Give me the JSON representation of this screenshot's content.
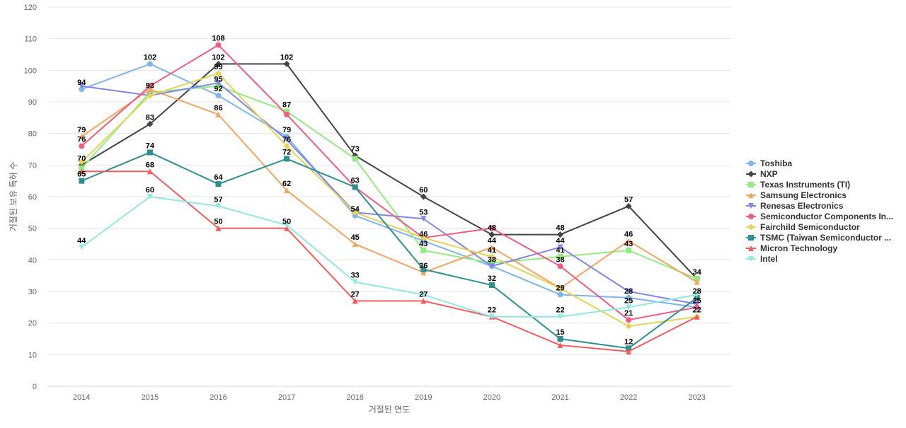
{
  "chart_data": {
    "type": "line",
    "title": "",
    "xlabel": "거절된 연도",
    "ylabel": "거절된 보유 특허 수",
    "ylim": [
      0,
      120
    ],
    "yticks": [
      0,
      10,
      20,
      30,
      40,
      50,
      60,
      70,
      80,
      90,
      100,
      110,
      120
    ],
    "grid": true,
    "legend_position": "right",
    "categories": [
      "2014",
      "2015",
      "2016",
      "2017",
      "2018",
      "2019",
      "2020",
      "2021",
      "2022",
      "2023"
    ],
    "series": [
      {
        "name": "Toshiba",
        "color": "#7cb5ec",
        "marker": "circle",
        "values": [
          94,
          102,
          92,
          79,
          54,
          46,
          38,
          29,
          28,
          25
        ]
      },
      {
        "name": "NXP",
        "color": "#434348",
        "marker": "diamond",
        "values": [
          70,
          83,
          102,
          102,
          73,
          60,
          48,
          48,
          57,
          34
        ]
      },
      {
        "name": "Texas Instruments (TI)",
        "color": "#90ed7d",
        "marker": "square",
        "values": [
          69,
          93,
          95,
          87,
          72,
          43,
          39,
          41,
          43,
          34
        ]
      },
      {
        "name": "Samsung Electronics",
        "color": "#f7a35c",
        "marker": "triangle",
        "values": [
          79,
          94,
          86,
          62,
          45,
          36,
          44,
          31,
          46,
          33
        ]
      },
      {
        "name": "Renesas Electronics",
        "color": "#8085e9",
        "marker": "triangle-down",
        "values": [
          95,
          92,
          96,
          78,
          55,
          53,
          38,
          44,
          30,
          26
        ]
      },
      {
        "name": "Semiconductor Components In...",
        "color": "#f15c80",
        "marker": "circle",
        "values": [
          76,
          95,
          108,
          86,
          63,
          47,
          50,
          38,
          21,
          25
        ]
      },
      {
        "name": "Fairchild Semiconductor",
        "color": "#e4d354",
        "marker": "diamond",
        "values": [
          71,
          92,
          99,
          76,
          55,
          47,
          41,
          31,
          19,
          22
        ]
      },
      {
        "name": "TSMC (Taiwan Semiconductor ...",
        "color": "#2b908f",
        "marker": "square",
        "values": [
          65,
          74,
          64,
          72,
          63,
          37,
          32,
          15,
          12,
          28
        ]
      },
      {
        "name": "Micron Technology",
        "color": "#f45b5b",
        "marker": "triangle",
        "values": [
          68,
          68,
          50,
          50,
          27,
          27,
          22,
          13,
          11,
          22
        ]
      },
      {
        "name": "Intel",
        "color": "#91e8e1",
        "marker": "triangle-down",
        "values": [
          44,
          60,
          57,
          51,
          33,
          29,
          22,
          22,
          25,
          29
        ]
      }
    ],
    "data_labels": [
      {
        "x": "2014",
        "value": 94,
        "series": "Toshiba"
      },
      {
        "x": "2014",
        "value": 79,
        "series": "Samsung Electronics"
      },
      {
        "x": "2014",
        "value": 76,
        "series": "Semiconductor Components In..."
      },
      {
        "x": "2014",
        "value": 70,
        "series": "NXP"
      },
      {
        "x": "2014",
        "value": 65,
        "series": "TSMC (Taiwan Semiconductor ..."
      },
      {
        "x": "2014",
        "value": 44,
        "series": "Intel"
      },
      {
        "x": "2015",
        "value": 102,
        "series": "Toshiba"
      },
      {
        "x": "2015",
        "value": 93,
        "series": "Texas Instruments (TI)"
      },
      {
        "x": "2015",
        "value": 83,
        "series": "NXP"
      },
      {
        "x": "2015",
        "value": 74,
        "series": "TSMC (Taiwan Semiconductor ..."
      },
      {
        "x": "2015",
        "value": 68,
        "series": "Micron Technology"
      },
      {
        "x": "2015",
        "value": 60,
        "series": "Intel"
      },
      {
        "x": "2016",
        "value": 108,
        "series": "Semiconductor Components In..."
      },
      {
        "x": "2016",
        "value": 102,
        "series": "NXP"
      },
      {
        "x": "2016",
        "value": 99,
        "series": "Fairchild Semiconductor"
      },
      {
        "x": "2016",
        "value": 95,
        "series": "Texas Instruments (TI)"
      },
      {
        "x": "2016",
        "value": 92,
        "series": "Toshiba"
      },
      {
        "x": "2016",
        "value": 86,
        "series": "Samsung Electronics"
      },
      {
        "x": "2016",
        "value": 64,
        "series": "TSMC (Taiwan Semiconductor ..."
      },
      {
        "x": "2016",
        "value": 57,
        "series": "Intel"
      },
      {
        "x": "2016",
        "value": 50,
        "series": "Micron Technology"
      },
      {
        "x": "2017",
        "value": 102,
        "series": "NXP"
      },
      {
        "x": "2017",
        "value": 87,
        "series": "Texas Instruments (TI)"
      },
      {
        "x": "2017",
        "value": 79,
        "series": "Toshiba"
      },
      {
        "x": "2017",
        "value": 76,
        "series": "Fairchild Semiconductor"
      },
      {
        "x": "2017",
        "value": 72,
        "series": "TSMC (Taiwan Semiconductor ..."
      },
      {
        "x": "2017",
        "value": 62,
        "series": "Samsung Electronics"
      },
      {
        "x": "2017",
        "value": 50,
        "series": "Micron Technology"
      },
      {
        "x": "2018",
        "value": 73,
        "series": "NXP"
      },
      {
        "x": "2018",
        "value": 63,
        "series": "TSMC (Taiwan Semiconductor ..."
      },
      {
        "x": "2018",
        "value": 54,
        "series": "Toshiba"
      },
      {
        "x": "2018",
        "value": 45,
        "series": "Samsung Electronics"
      },
      {
        "x": "2018",
        "value": 33,
        "series": "Intel"
      },
      {
        "x": "2018",
        "value": 27,
        "series": "Micron Technology"
      },
      {
        "x": "2019",
        "value": 60,
        "series": "NXP"
      },
      {
        "x": "2019",
        "value": 53,
        "series": "Renesas Electronics"
      },
      {
        "x": "2019",
        "value": 46,
        "series": "Toshiba"
      },
      {
        "x": "2019",
        "value": 43,
        "series": "Texas Instruments (TI)"
      },
      {
        "x": "2019",
        "value": 36,
        "series": "Samsung Electronics"
      },
      {
        "x": "2019",
        "value": 27,
        "series": "Micron Technology"
      },
      {
        "x": "2020",
        "value": 48,
        "series": "NXP"
      },
      {
        "x": "2020",
        "value": 44,
        "series": "Samsung Electronics"
      },
      {
        "x": "2020",
        "value": 41,
        "series": "Fairchild Semiconductor"
      },
      {
        "x": "2020",
        "value": 38,
        "series": "Toshiba"
      },
      {
        "x": "2020",
        "value": 32,
        "series": "TSMC (Taiwan Semiconductor ..."
      },
      {
        "x": "2020",
        "value": 22,
        "series": "Micron Technology"
      },
      {
        "x": "2021",
        "value": 48,
        "series": "NXP"
      },
      {
        "x": "2021",
        "value": 44,
        "series": "Renesas Electronics"
      },
      {
        "x": "2021",
        "value": 41,
        "series": "Texas Instruments (TI)"
      },
      {
        "x": "2021",
        "value": 38,
        "series": "Semiconductor Components In..."
      },
      {
        "x": "2021",
        "value": 29,
        "series": "Toshiba"
      },
      {
        "x": "2021",
        "value": 22,
        "series": "Intel"
      },
      {
        "x": "2021",
        "value": 15,
        "series": "TSMC (Taiwan Semiconductor ..."
      },
      {
        "x": "2022",
        "value": 57,
        "series": "NXP"
      },
      {
        "x": "2022",
        "value": 46,
        "series": "Samsung Electronics"
      },
      {
        "x": "2022",
        "value": 43,
        "series": "Texas Instruments (TI)"
      },
      {
        "x": "2022",
        "value": 28,
        "series": "Toshiba"
      },
      {
        "x": "2022",
        "value": 25,
        "series": "Intel"
      },
      {
        "x": "2022",
        "value": 21,
        "series": "Semiconductor Components In..."
      },
      {
        "x": "2022",
        "value": 12,
        "series": "TSMC (Taiwan Semiconductor ..."
      },
      {
        "x": "2023",
        "value": 34,
        "series": "NXP"
      },
      {
        "x": "2023",
        "value": 28,
        "series": "TSMC (Taiwan Semiconductor ..."
      },
      {
        "x": "2023",
        "value": 25,
        "series": "Semiconductor Components In..."
      },
      {
        "x": "2023",
        "value": 22,
        "series": "Fairchild Semiconductor"
      }
    ]
  }
}
